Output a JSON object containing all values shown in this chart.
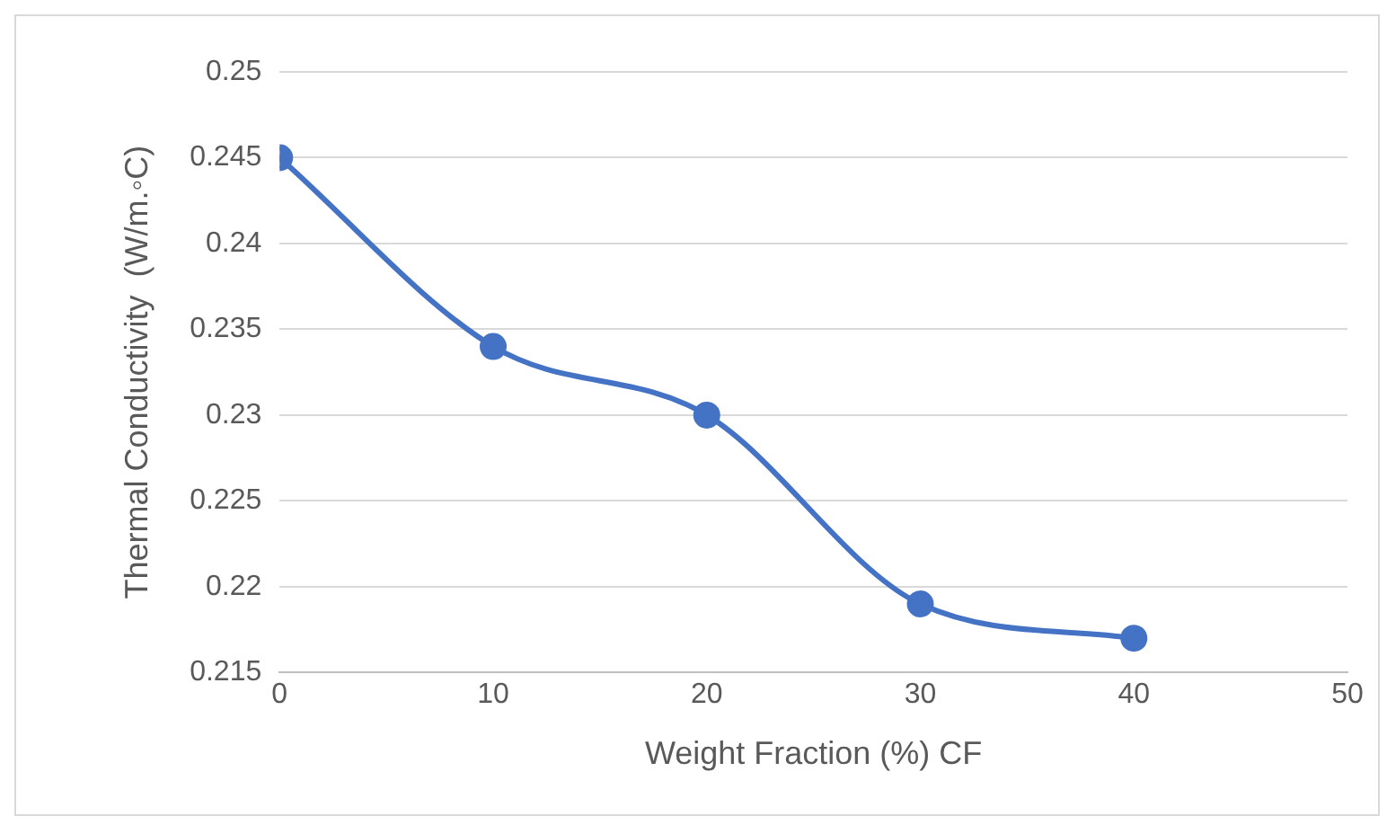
{
  "chart_data": {
    "type": "line",
    "xlabel": "Weight Fraction (%) CF",
    "ylabel": "Thermal Conductivity  (W/m.◦C)",
    "x": [
      0,
      10,
      20,
      30,
      40
    ],
    "series": [
      {
        "color": "#4472c4",
        "values": [
          0.245,
          0.234,
          0.23,
          0.219,
          0.217
        ]
      }
    ],
    "xlim": [
      0,
      50
    ],
    "xticks": [
      0,
      10,
      20,
      30,
      40,
      50
    ],
    "ylim": [
      0.215,
      0.25
    ],
    "yticks": [
      0.215,
      0.22,
      0.225,
      0.23,
      0.235,
      0.24,
      0.245,
      0.25
    ],
    "grid": "y",
    "legend": false,
    "marker": "circle",
    "line_style": "solid"
  }
}
